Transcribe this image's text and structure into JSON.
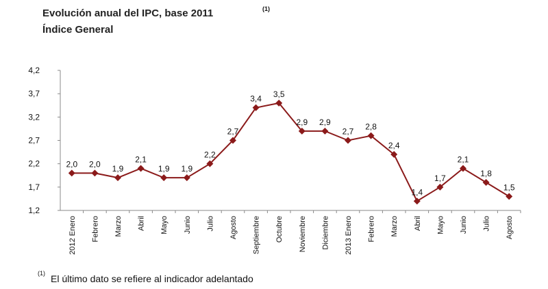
{
  "chart_data": {
    "type": "line",
    "title": "Evolución anual del IPC, base 2011",
    "title_note": "(1)",
    "subtitle": "Índice General",
    "footnote": {
      "marker": "(1)",
      "text": "El último dato se refiere al indicador adelantado"
    },
    "categories": [
      "2012 Enero",
      "Febrero",
      "Marzo",
      "Abril",
      "Mayo",
      "Junio",
      "Julio",
      "Agosto",
      "Septiembre",
      "Octubre",
      "Noviembre",
      "Diciembre",
      "2013 Enero",
      "Febrero",
      "Marzo",
      "Abril",
      "Mayo",
      "Junio",
      "Julio",
      "Agosto"
    ],
    "values": [
      2.0,
      2.0,
      1.9,
      2.1,
      1.9,
      1.9,
      2.2,
      2.7,
      3.4,
      3.5,
      2.9,
      2.9,
      2.7,
      2.8,
      2.4,
      1.4,
      1.7,
      2.1,
      1.8,
      1.5
    ],
    "value_labels": [
      "2,0",
      "2,0",
      "1,9",
      "2,1",
      "1,9",
      "1,9",
      "2,2",
      "2,7",
      "3,4",
      "3,5",
      "2,9",
      "2,9",
      "2,7",
      "2,8",
      "2,4",
      "1,4",
      "1,7",
      "2,1",
      "1,8",
      "1,5"
    ],
    "color": "#8b1a1a",
    "ylim": [
      1.2,
      4.2
    ],
    "yticks": [
      {
        "value": 1.2,
        "label": "1,2"
      },
      {
        "value": 1.7,
        "label": "1,7"
      },
      {
        "value": 2.2,
        "label": "2,2"
      },
      {
        "value": 2.7,
        "label": "2,7"
      },
      {
        "value": 3.2,
        "label": "3,2"
      },
      {
        "value": 3.7,
        "label": "3,7"
      },
      {
        "value": 4.2,
        "label": "4,2"
      }
    ],
    "grid": false
  }
}
